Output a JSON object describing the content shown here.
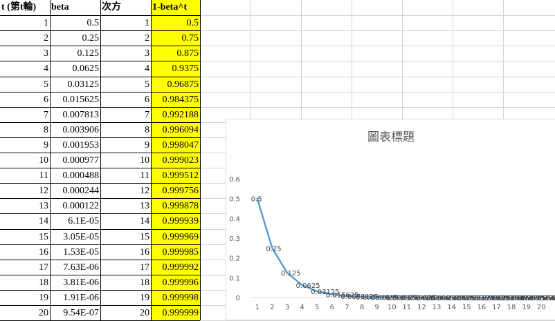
{
  "sheet": {
    "headers": [
      "t (第t輪)",
      "beta",
      "次方",
      "1-beta^t"
    ],
    "rows": [
      [
        "1",
        "0.5",
        "1",
        "0.5"
      ],
      [
        "2",
        "0.25",
        "2",
        "0.75"
      ],
      [
        "3",
        "0.125",
        "3",
        "0.875"
      ],
      [
        "4",
        "0.0625",
        "4",
        "0.9375"
      ],
      [
        "5",
        "0.03125",
        "5",
        "0.96875"
      ],
      [
        "6",
        "0.015625",
        "6",
        "0.984375"
      ],
      [
        "7",
        "0.007813",
        "7",
        "0.992188"
      ],
      [
        "8",
        "0.003906",
        "8",
        "0.996094"
      ],
      [
        "9",
        "0.001953",
        "9",
        "0.998047"
      ],
      [
        "10",
        "0.000977",
        "10",
        "0.999023"
      ],
      [
        "11",
        "0.000488",
        "11",
        "0.999512"
      ],
      [
        "12",
        "0.000244",
        "12",
        "0.999756"
      ],
      [
        "13",
        "0.000122",
        "13",
        "0.999878"
      ],
      [
        "14",
        "6.1E-05",
        "14",
        "0.999939"
      ],
      [
        "15",
        "3.05E-05",
        "15",
        "0.999969"
      ],
      [
        "16",
        "1.53E-05",
        "16",
        "0.999985"
      ],
      [
        "17",
        "7.63E-06",
        "17",
        "0.999992"
      ],
      [
        "18",
        "3.81E-06",
        "18",
        "0.999996"
      ],
      [
        "19",
        "1.91E-06",
        "19",
        "0.999998"
      ],
      [
        "20",
        "9.54E-07",
        "20",
        "0.999999"
      ]
    ],
    "highlight_color": "#ffff00"
  },
  "chart_data": {
    "type": "line",
    "title": "圖表標題",
    "x": [
      1,
      2,
      3,
      4,
      5,
      6,
      7,
      8,
      9,
      10,
      11,
      12,
      13,
      14,
      15,
      16,
      17,
      18,
      19,
      20
    ],
    "series": [
      {
        "values": [
          0.5,
          0.25,
          0.125,
          0.0625,
          0.03125,
          0.015625,
          0.0078125,
          0.00390625,
          0.001953125,
          0.0009765625,
          0.00048828125,
          0.000244140625,
          0.0001220703125,
          6.103515625e-05,
          3.0517578125e-05,
          1.52587890625e-05,
          7.62939453125e-06,
          3.814697265625e-06,
          1.9073486328125e-06,
          9.5367431640625e-07
        ],
        "color": "#5b9bd5"
      }
    ],
    "ylim": [
      0,
      0.6
    ],
    "yticks": [
      "0",
      "0.1",
      "0.2",
      "0.3",
      "0.4",
      "0.5",
      "0.6"
    ],
    "data_labels": [
      "0.5",
      "0.25",
      "0.125",
      "0.0625",
      "0.03125",
      "0.015625",
      "0.0078125",
      "0.00390625",
      "0.001953125",
      "0.0009765625",
      "0.00048828125",
      "0.000244140625",
      "0.0001220703125",
      "6.103515625E-05",
      "3.0517578125E-05",
      "1.52587890625E-05",
      "7.62939453125E-06",
      "3.814697265625E-06",
      "1.9073486328125E-06",
      "9.5367431640625E-07"
    ],
    "grid": false,
    "legend": "none"
  }
}
